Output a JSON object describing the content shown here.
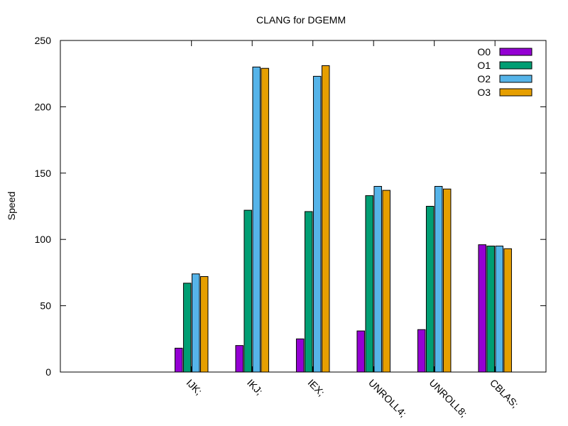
{
  "chart_data": {
    "type": "bar",
    "title": "CLANG for DGEMM",
    "xlabel": "",
    "ylabel": "Speed",
    "ylim": [
      0,
      250
    ],
    "yticks": [
      0,
      50,
      100,
      150,
      200,
      250
    ],
    "categories": [
      "IJK;",
      "IKJ;",
      "IEX;",
      "UNROLL4;",
      "UNROLL8;",
      "CBLAS;"
    ],
    "series": [
      {
        "name": "O0",
        "color": "#9400d3",
        "values": [
          18,
          20,
          25,
          31,
          32,
          96
        ]
      },
      {
        "name": "O1",
        "color": "#009e73",
        "values": [
          67,
          122,
          121,
          133,
          125,
          95
        ]
      },
      {
        "name": "O2",
        "color": "#56b4e9",
        "values": [
          74,
          230,
          223,
          140,
          140,
          95
        ]
      },
      {
        "name": "O3",
        "color": "#e69f00",
        "values": [
          72,
          229,
          231,
          137,
          138,
          93
        ]
      }
    ],
    "grid": false,
    "legend_position": "top-right",
    "tick_label_rotation": "slanted"
  }
}
